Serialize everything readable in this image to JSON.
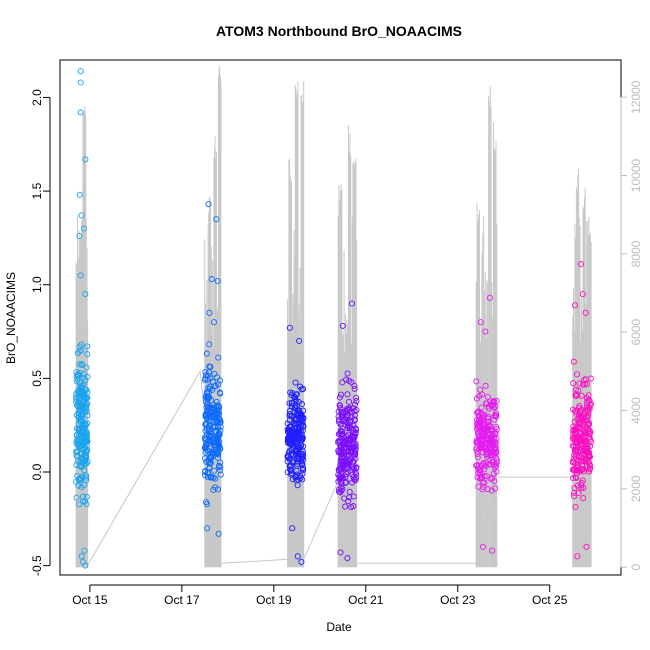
{
  "chart_data": {
    "type": "scatter",
    "title": "ATOM3 Northbound BrO_NOAACIMS",
    "xlabel": "Date",
    "ylabel": "BrO_NOAACIMS",
    "xlim": [
      14.35,
      26.55
    ],
    "ylim": [
      -0.55,
      2.2
    ],
    "right_ylim": [
      -200,
      12950
    ],
    "x_ticks": [
      {
        "value": 15,
        "label": "Oct 15"
      },
      {
        "value": 17,
        "label": "Oct 17"
      },
      {
        "value": 19,
        "label": "Oct 19"
      },
      {
        "value": 21,
        "label": "Oct 21"
      },
      {
        "value": 23,
        "label": "Oct 23"
      },
      {
        "value": 25,
        "label": "Oct 25"
      }
    ],
    "y_ticks": [
      "-0.5",
      "0.0",
      "0.5",
      "1.0",
      "1.5",
      "2.0"
    ],
    "right_y_ticks": [
      "0",
      "2000",
      "4000",
      "6000",
      "8000",
      "10000",
      "12000"
    ],
    "flights": [
      {
        "name": "flight-1",
        "x_start": 14.7,
        "x_end": 14.95,
        "color": "#1aa3ee",
        "core_range": [
          -0.3,
          0.8
        ],
        "outliers": [
          [
            14.8,
            2.14
          ],
          [
            14.8,
            2.08
          ],
          [
            14.8,
            1.92
          ],
          [
            14.9,
            1.67
          ],
          [
            14.78,
            1.48
          ],
          [
            14.82,
            1.37
          ],
          [
            14.77,
            1.26
          ],
          [
            14.87,
            1.3
          ],
          [
            14.8,
            1.05
          ],
          [
            14.9,
            0.95
          ],
          [
            14.85,
            -0.48
          ],
          [
            14.9,
            -0.5
          ],
          [
            14.82,
            -0.45
          ],
          [
            14.88,
            -0.42
          ]
        ],
        "alt_peaks": [
          [
            14.82,
            9000
          ],
          [
            14.88,
            11900
          ]
        ]
      },
      {
        "name": "flight-2",
        "x_start": 17.5,
        "x_end": 17.85,
        "color": "#0d6bff",
        "core_range": [
          -0.25,
          0.7
        ],
        "outliers": [
          [
            17.58,
            1.43
          ],
          [
            17.75,
            1.35
          ],
          [
            17.65,
            1.03
          ],
          [
            17.78,
            1.02
          ],
          [
            17.6,
            0.85
          ],
          [
            17.7,
            0.8
          ],
          [
            17.55,
            -0.3
          ],
          [
            17.8,
            -0.33
          ]
        ],
        "alt_peaks": [
          [
            17.6,
            9500
          ],
          [
            17.72,
            11200
          ],
          [
            17.82,
            12950
          ]
        ]
      },
      {
        "name": "flight-3",
        "x_start": 19.3,
        "x_end": 19.65,
        "color": "#1f1fff",
        "core_range": [
          -0.2,
          0.55
        ],
        "outliers": [
          [
            19.35,
            0.77
          ],
          [
            19.55,
            0.7
          ],
          [
            19.6,
            -0.48
          ],
          [
            19.52,
            -0.45
          ],
          [
            19.4,
            -0.3
          ]
        ],
        "alt_peaks": [
          [
            19.35,
            10500
          ],
          [
            19.5,
            12800
          ],
          [
            19.62,
            12500
          ]
        ]
      },
      {
        "name": "flight-4",
        "x_start": 20.4,
        "x_end": 20.8,
        "color": "#7b0dff",
        "core_range": [
          -0.3,
          0.6
        ],
        "outliers": [
          [
            20.7,
            0.9
          ],
          [
            20.5,
            0.78
          ],
          [
            20.6,
            -0.46
          ],
          [
            20.45,
            -0.43
          ]
        ],
        "alt_peaks": [
          [
            20.45,
            10000
          ],
          [
            20.65,
            11300
          ],
          [
            20.75,
            11000
          ]
        ]
      },
      {
        "name": "flight-5",
        "x_start": 23.4,
        "x_end": 23.85,
        "color": "#e51cf0",
        "core_range": [
          -0.22,
          0.58
        ],
        "outliers": [
          [
            23.7,
            0.93
          ],
          [
            23.5,
            0.8
          ],
          [
            23.6,
            0.75
          ],
          [
            23.55,
            -0.4
          ],
          [
            23.75,
            -0.42
          ]
        ],
        "alt_peaks": [
          [
            23.45,
            9600
          ],
          [
            23.7,
            12500
          ],
          [
            23.8,
            11400
          ]
        ]
      },
      {
        "name": "flight-6",
        "x_start": 25.5,
        "x_end": 25.9,
        "color": "#fb0fc2",
        "core_range": [
          -0.22,
          0.6
        ],
        "outliers": [
          [
            25.68,
            1.11
          ],
          [
            25.72,
            0.95
          ],
          [
            25.55,
            0.89
          ],
          [
            25.78,
            0.85
          ],
          [
            25.6,
            -0.45
          ],
          [
            25.8,
            -0.4
          ]
        ],
        "alt_peaks": [
          [
            25.6,
            10300
          ],
          [
            25.75,
            9900
          ],
          [
            25.85,
            9200
          ]
        ]
      }
    ],
    "altitude_connectors": [
      [
        14.95,
        50
      ],
      [
        17.4,
        5000
      ],
      [
        17.85,
        100
      ],
      [
        19.3,
        200
      ],
      [
        19.65,
        200
      ],
      [
        20.4,
        2200
      ],
      [
        20.8,
        100
      ],
      [
        23.4,
        100
      ],
      [
        23.85,
        2300
      ],
      [
        25.5,
        2300
      ]
    ]
  }
}
